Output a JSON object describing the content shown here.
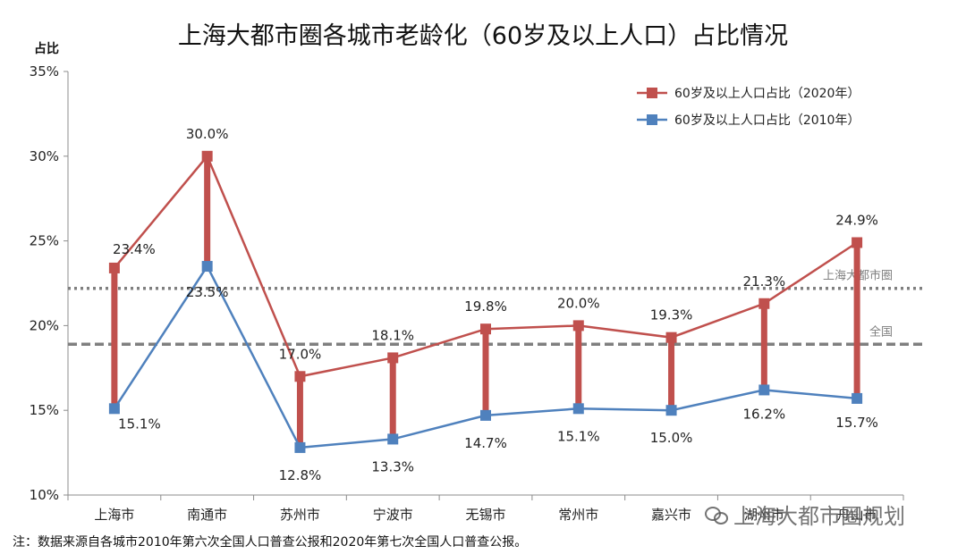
{
  "title": "上海大都市圈各城市老龄化（60岁及以上人口）占比情况",
  "note": "注：数据来源自各城市2010年第六次全国人口普查公报和2020年第七次全国人口普查公报。",
  "watermark": "上海大都市圈规划",
  "chart_data": {
    "type": "line",
    "ylabel": "占比",
    "ylim": [
      10,
      35
    ],
    "yticks": [
      "10%",
      "15%",
      "20%",
      "25%",
      "30%",
      "35%"
    ],
    "categories": [
      "上海市",
      "南通市",
      "苏州市",
      "宁波市",
      "无锡市",
      "常州市",
      "嘉兴市",
      "湖州市",
      "舟山市"
    ],
    "series": [
      {
        "name": "60岁及以上人口占比（2020年）",
        "color": "#c0504d",
        "values": [
          23.4,
          30.0,
          17.0,
          18.1,
          19.8,
          20.0,
          19.3,
          21.3,
          24.9
        ],
        "labels": [
          "23.4%",
          "30.0%",
          "17.0%",
          "18.1%",
          "19.8%",
          "20.0%",
          "19.3%",
          "21.3%",
          "24.9%"
        ]
      },
      {
        "name": "60岁及以上人口占比（2010年）",
        "color": "#4f81bd",
        "values": [
          15.1,
          23.5,
          12.8,
          13.3,
          14.7,
          15.1,
          15.0,
          16.2,
          15.7
        ],
        "labels": [
          "15.1%",
          "23.5%",
          "12.8%",
          "13.3%",
          "14.7%",
          "15.1%",
          "15.0%",
          "16.2%",
          "15.7%"
        ]
      }
    ],
    "reference_lines": [
      {
        "name": "上海大都市圈",
        "value": 22.2,
        "style": "dotted",
        "color": "#7f7f7f"
      },
      {
        "name": "全国",
        "value": 18.9,
        "style": "dashed",
        "color": "#7f7f7f"
      }
    ],
    "legend_position": "top-right",
    "grid": false
  }
}
